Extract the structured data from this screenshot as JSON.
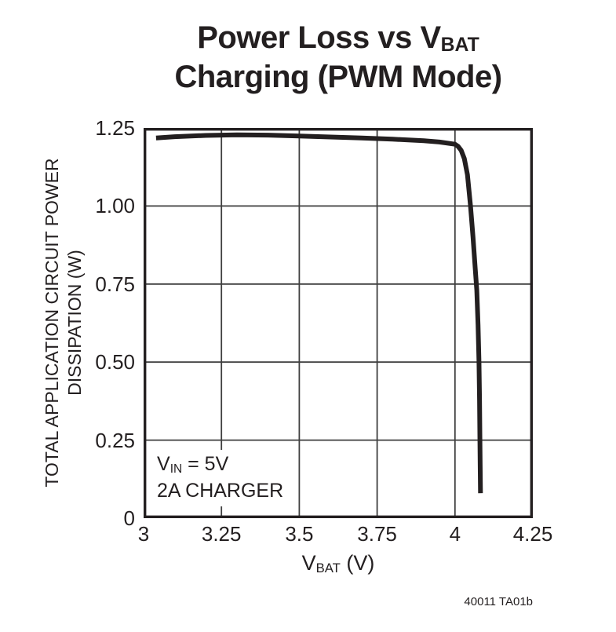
{
  "title": {
    "line1_main": "Power Loss vs V",
    "line1_sub": "BAT",
    "line2": "Charging (PWM Mode)"
  },
  "y_axis": {
    "label_line1": "TOTAL APPLICATION CIRCUIT POWER",
    "label_line2": "DISSIPATION (W)"
  },
  "x_axis": {
    "label_main": "V",
    "label_sub": "BAT",
    "label_suffix": " (V)"
  },
  "annotation": {
    "line1_main": "V",
    "line1_sub": "IN",
    "line1_suffix": " = 5V",
    "line2": "2A CHARGER"
  },
  "footer": {
    "figure_id": "40011 TA01b"
  },
  "colors": {
    "ink": "#231f20",
    "grid": "#3f3f3f",
    "background": "#ffffff"
  },
  "chart_data": {
    "type": "line",
    "title": "Power Loss vs VBAT Charging (PWM Mode)",
    "xlabel": "VBAT (V)",
    "ylabel": "TOTAL APPLICATION CIRCUIT POWER DISSIPATION (W)",
    "xlim": [
      3,
      4.25
    ],
    "ylim": [
      0,
      1.25
    ],
    "x_ticks": [
      3,
      3.25,
      3.5,
      3.75,
      4,
      4.25
    ],
    "x_tick_labels": [
      "3",
      "3.25",
      "3.5",
      "3.75",
      "4",
      "4.25"
    ],
    "y_ticks": [
      0,
      0.25,
      0.5,
      0.75,
      1,
      1.25
    ],
    "y_tick_labels": [
      "0",
      "0.25",
      "0.50",
      "0.75",
      "1.00",
      "1.25"
    ],
    "grid": true,
    "legend_position": "none",
    "annotations": [
      "VIN = 5V",
      "2A CHARGER"
    ],
    "series": [
      {
        "name": "total_application_circuit_power_dissipation_w",
        "points": [
          [
            3.04,
            1.218
          ],
          [
            3.1,
            1.222
          ],
          [
            3.2,
            1.226
          ],
          [
            3.3,
            1.228
          ],
          [
            3.4,
            1.227
          ],
          [
            3.5,
            1.224
          ],
          [
            3.6,
            1.221
          ],
          [
            3.7,
            1.218
          ],
          [
            3.75,
            1.216
          ],
          [
            3.8,
            1.214
          ],
          [
            3.9,
            1.209
          ],
          [
            3.95,
            1.205
          ],
          [
            4.0,
            1.198
          ],
          [
            4.01,
            1.191
          ],
          [
            4.02,
            1.178
          ],
          [
            4.03,
            1.152
          ],
          [
            4.04,
            1.1
          ],
          [
            4.05,
            1.0
          ],
          [
            4.058,
            0.9
          ],
          [
            4.065,
            0.8
          ],
          [
            4.07,
            0.73
          ],
          [
            4.074,
            0.62
          ],
          [
            4.077,
            0.5
          ],
          [
            4.079,
            0.38
          ],
          [
            4.08,
            0.27
          ],
          [
            4.081,
            0.17
          ],
          [
            4.082,
            0.08
          ]
        ]
      }
    ]
  }
}
